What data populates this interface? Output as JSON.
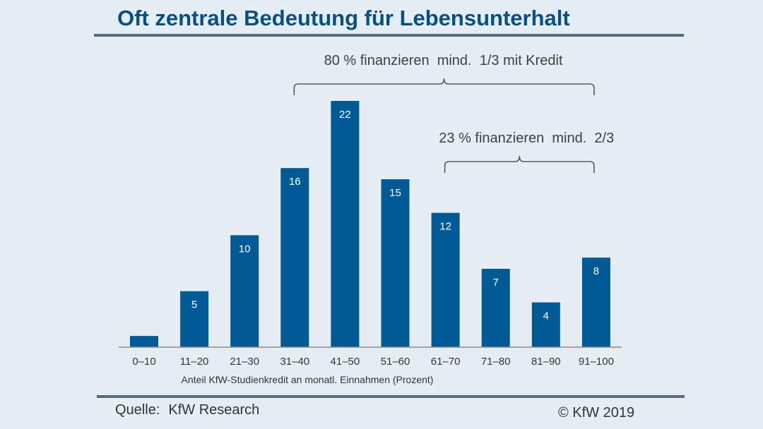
{
  "header": {
    "title": "Oft zentrale Bedeutung für Lebensunterhalt"
  },
  "chart_data": {
    "type": "bar",
    "title": "Oft zentrale Bedeutung für Lebensunterhalt",
    "categories": [
      "0–10",
      "11–20",
      "21–30",
      "31–40",
      "41–50",
      "51–60",
      "61–70",
      "71–80",
      "81–90",
      "91–100"
    ],
    "values": [
      1,
      5,
      10,
      16,
      22,
      15,
      12,
      7,
      4,
      8
    ],
    "data_labels": [
      "",
      "5",
      "10",
      "16",
      "22",
      "15",
      "12",
      "7",
      "4",
      "8"
    ],
    "xlabel": "Anteil KfW-Studienkredit an monatl. Einnahmen (Prozent)",
    "ylabel": "",
    "ylim": [
      0,
      22
    ],
    "grid": false,
    "color": "#005a96",
    "annotations": [
      {
        "text": "80 % finanzieren  mind.  1/3 mit Kredit",
        "from_category": "31–40",
        "to_category": "91–100"
      },
      {
        "text": "23 % finanzieren  mind.  2/3",
        "from_category": "61–70",
        "to_category": "91–100"
      }
    ]
  },
  "footer": {
    "source_label": "Quelle:",
    "source_value": "KfW Research",
    "copyright": "© KfW 2019"
  }
}
